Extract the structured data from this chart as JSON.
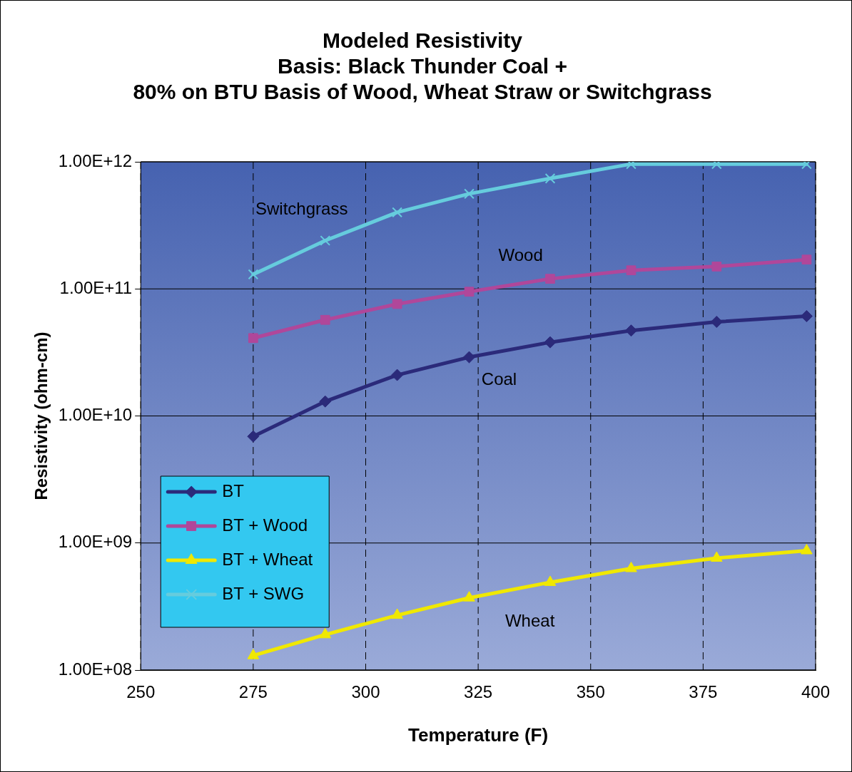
{
  "chart_data": {
    "type": "line",
    "title": [
      "Modeled Resistivity",
      "Basis: Black Thunder Coal +",
      "80% on BTU Basis of Wood, Wheat Straw or Switchgrass"
    ],
    "xlabel": "Temperature (F)",
    "ylabel": "Resistivity (ohm-cm)",
    "x": [
      275,
      291,
      307,
      323,
      341,
      359,
      378,
      398
    ],
    "series": [
      {
        "name": "BT",
        "color": "#2b2a7a",
        "marker": "diamond",
        "values": [
          6900000000.0,
          13000000000.0,
          21000000000.0,
          29000000000.0,
          38000000000.0,
          47000000000.0,
          55000000000.0,
          61000000000.0
        ]
      },
      {
        "name": "BT + Wood",
        "color": "#b0479a",
        "marker": "square",
        "values": [
          41000000000.0,
          57000000000.0,
          76000000000.0,
          95000000000.0,
          120000000000.0,
          140000000000.0,
          150000000000.0,
          170000000000.0
        ]
      },
      {
        "name": "BT + Wheat",
        "color": "#f0e800",
        "marker": "triangle",
        "values": [
          130000000.0,
          190000000.0,
          270000000.0,
          370000000.0,
          490000000.0,
          630000000.0,
          760000000.0,
          870000000.0
        ]
      },
      {
        "name": "BT + SWG",
        "color": "#66ccdd",
        "marker": "cross",
        "values": [
          130000000000.0,
          240000000000.0,
          400000000000.0,
          560000000000.0,
          740000000000.0,
          960000000000.0,
          960000000000.0,
          960000000000.0
        ]
      }
    ],
    "xlim": [
      250,
      400
    ],
    "xticks": [
      250,
      275,
      300,
      325,
      350,
      375,
      400
    ],
    "ylim": [
      100000000.0,
      1000000000000.0
    ],
    "yticks": [
      {
        "value": 100000000.0,
        "label": "1.00E+08"
      },
      {
        "value": 1000000000.0,
        "label": "1.00E+09"
      },
      {
        "value": 10000000000.0,
        "label": "1.00E+10"
      },
      {
        "value": 100000000000.0,
        "label": "1.00E+11"
      },
      {
        "value": 1000000000000.0,
        "label": "1.00E+12"
      }
    ],
    "log": "y",
    "grid": true,
    "legend": "bottom left",
    "annotations": [
      "Switchgrass",
      "Wood",
      "Coal",
      "Wheat"
    ]
  }
}
